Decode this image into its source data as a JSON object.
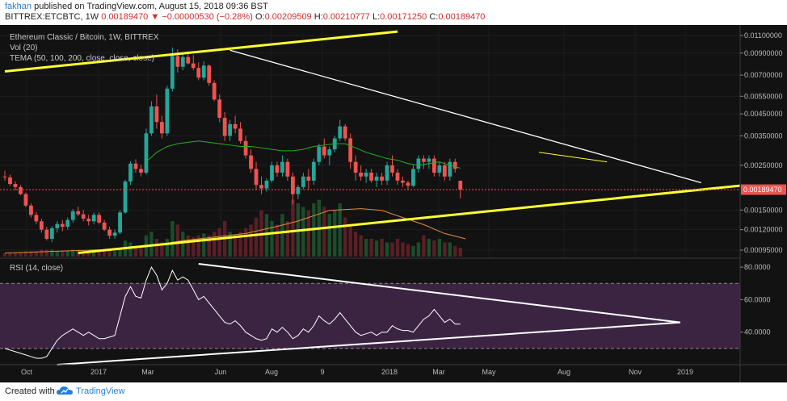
{
  "header": {
    "publisher_user": "fakhan",
    "publisher_text": "published on TradingView.com, August 15, 2018 09:36 BST",
    "symbol": "BITTREX:ETCBTC, 1W",
    "last": "0.00189470",
    "change": "−0.00000530 (−0.28%)",
    "o_label": "O:",
    "o": "0.00209509",
    "h_label": "H:",
    "h": "0.00210777",
    "l_label": "L:",
    "l": "0.00171250",
    "c_label": "C:",
    "c": "0.00189470"
  },
  "legend": {
    "title": "Ethereum Classic / Bitcoin, 1W, BITTREX",
    "vol": "Vol (20)",
    "tema": "TEMA (50, 100, 200, close, close, close)"
  },
  "footer": {
    "created": "Created with",
    "brand": "TradingView"
  },
  "colors": {
    "up": "#26a69a",
    "down": "#ef5350",
    "yellow": "#ffff33",
    "trend": "#ffffff",
    "tema": "#22b322",
    "vol_ma": "#e58a3a",
    "rsi": "#ffffff",
    "rsi_band": "#3b2442",
    "background": "#121212",
    "price_label": "#ef5350"
  },
  "chart_data": {
    "type": "candlestick",
    "price_axis": {
      "scale": "log",
      "ticks": [
        "0.01100000",
        "0.00900000",
        "0.00700000",
        "0.00550000",
        "0.00450000",
        "0.00350000",
        "0.00250000",
        "0.00150000",
        "0.00120000",
        "0.00095000"
      ],
      "last_price_label": "0.00189470"
    },
    "rsi_axis": {
      "ticks": [
        "80.0000",
        "60.0000",
        "40.0000"
      ],
      "upper_band": 70,
      "lower_band": 30,
      "range": [
        20,
        85
      ]
    },
    "x_ticks": [
      "Oct",
      "2017",
      "Mar",
      "Jun",
      "Aug",
      "9",
      "2018",
      "Mar",
      "May",
      "Aug",
      "Nov",
      "2019"
    ],
    "rsi_label": "RSI (14, close)",
    "candles": [
      [
        0.0022,
        0.00235,
        0.0021,
        0.00218
      ],
      [
        0.00218,
        0.00225,
        0.00198,
        0.00202
      ],
      [
        0.00202,
        0.00208,
        0.00188,
        0.00195
      ],
      [
        0.00195,
        0.002,
        0.00178,
        0.0018
      ],
      [
        0.0018,
        0.00183,
        0.00155,
        0.00158
      ],
      [
        0.00158,
        0.00162,
        0.00138,
        0.00142
      ],
      [
        0.00142,
        0.00147,
        0.00128,
        0.00132
      ],
      [
        0.00132,
        0.00136,
        0.00116,
        0.0012
      ],
      [
        0.0012,
        0.00124,
        0.00106,
        0.00108
      ],
      [
        0.00108,
        0.00125,
        0.00104,
        0.00122
      ],
      [
        0.00122,
        0.00132,
        0.00116,
        0.00128
      ],
      [
        0.00128,
        0.00134,
        0.00118,
        0.00124
      ],
      [
        0.00124,
        0.00138,
        0.0012,
        0.00134
      ],
      [
        0.00134,
        0.00152,
        0.0013,
        0.00148
      ],
      [
        0.00148,
        0.00156,
        0.0014,
        0.00143
      ],
      [
        0.00143,
        0.0015,
        0.00132,
        0.00136
      ],
      [
        0.00136,
        0.00142,
        0.00126,
        0.00132
      ],
      [
        0.00132,
        0.00146,
        0.00128,
        0.00142
      ],
      [
        0.00142,
        0.00146,
        0.00128,
        0.0013
      ],
      [
        0.0013,
        0.00134,
        0.00118,
        0.0012
      ],
      [
        0.0012,
        0.00124,
        0.00108,
        0.00112
      ],
      [
        0.00112,
        0.0012,
        0.00108,
        0.00116
      ],
      [
        0.00116,
        0.0015,
        0.00114,
        0.00146
      ],
      [
        0.00146,
        0.00212,
        0.00144,
        0.00208
      ],
      [
        0.00208,
        0.00262,
        0.002,
        0.00255
      ],
      [
        0.00255,
        0.00268,
        0.0023,
        0.0024
      ],
      [
        0.0024,
        0.00252,
        0.0022,
        0.0023
      ],
      [
        0.0023,
        0.0038,
        0.00225,
        0.0036
      ],
      [
        0.0036,
        0.0052,
        0.0035,
        0.0049
      ],
      [
        0.0049,
        0.0056,
        0.0038,
        0.0041
      ],
      [
        0.0041,
        0.0044,
        0.0034,
        0.0036
      ],
      [
        0.0036,
        0.0062,
        0.0035,
        0.006
      ],
      [
        0.006,
        0.0096,
        0.0058,
        0.0087
      ],
      [
        0.0087,
        0.0094,
        0.0072,
        0.0077
      ],
      [
        0.0077,
        0.0091,
        0.0074,
        0.0086
      ],
      [
        0.0086,
        0.0092,
        0.0079,
        0.008
      ],
      [
        0.008,
        0.0088,
        0.0074,
        0.0076
      ],
      [
        0.0076,
        0.0081,
        0.0066,
        0.0068
      ],
      [
        0.0068,
        0.0082,
        0.0066,
        0.0078
      ],
      [
        0.0078,
        0.0079,
        0.0062,
        0.0064
      ],
      [
        0.0064,
        0.0066,
        0.0052,
        0.0053
      ],
      [
        0.0053,
        0.0056,
        0.0041,
        0.0043
      ],
      [
        0.0043,
        0.0046,
        0.0033,
        0.0035
      ],
      [
        0.0035,
        0.0042,
        0.0033,
        0.004
      ],
      [
        0.004,
        0.0044,
        0.0036,
        0.0038
      ],
      [
        0.0038,
        0.0041,
        0.0032,
        0.0033
      ],
      [
        0.0033,
        0.0035,
        0.0027,
        0.0028
      ],
      [
        0.0028,
        0.003,
        0.0023,
        0.0024
      ],
      [
        0.0024,
        0.0026,
        0.0019,
        0.002
      ],
      [
        0.002,
        0.0022,
        0.0018,
        0.00192
      ],
      [
        0.00192,
        0.00215,
        0.00185,
        0.0021
      ],
      [
        0.0021,
        0.0026,
        0.00205,
        0.0025
      ],
      [
        0.0025,
        0.0026,
        0.0022,
        0.0023
      ],
      [
        0.0023,
        0.0028,
        0.0022,
        0.0026
      ],
      [
        0.0026,
        0.0027,
        0.0021,
        0.0022
      ],
      [
        0.0022,
        0.0023,
        0.0016,
        0.0018
      ],
      [
        0.0018,
        0.002,
        0.0017,
        0.00195
      ],
      [
        0.00195,
        0.0023,
        0.0019,
        0.0022
      ],
      [
        0.0022,
        0.0024,
        0.0019,
        0.0021
      ],
      [
        0.0021,
        0.0027,
        0.002,
        0.0026
      ],
      [
        0.0026,
        0.0032,
        0.0025,
        0.0031
      ],
      [
        0.0031,
        0.0034,
        0.0027,
        0.0028
      ],
      [
        0.0028,
        0.0031,
        0.0025,
        0.003
      ],
      [
        0.003,
        0.0035,
        0.0029,
        0.0034
      ],
      [
        0.0034,
        0.0042,
        0.0033,
        0.0039
      ],
      [
        0.0039,
        0.004,
        0.0033,
        0.0034
      ],
      [
        0.0034,
        0.0036,
        0.0024,
        0.0026
      ],
      [
        0.0026,
        0.0028,
        0.0021,
        0.0023
      ],
      [
        0.0023,
        0.0025,
        0.0021,
        0.0022
      ],
      [
        0.0022,
        0.0024,
        0.00205,
        0.0023
      ],
      [
        0.0023,
        0.0024,
        0.00205,
        0.0021
      ],
      [
        0.0021,
        0.0023,
        0.00195,
        0.0022
      ],
      [
        0.0022,
        0.0023,
        0.002,
        0.0021
      ],
      [
        0.0021,
        0.0026,
        0.002,
        0.0025
      ],
      [
        0.0025,
        0.0028,
        0.0022,
        0.0023
      ],
      [
        0.0023,
        0.0024,
        0.002,
        0.0021
      ],
      [
        0.0021,
        0.0022,
        0.00195,
        0.00205
      ],
      [
        0.00205,
        0.0021,
        0.0019,
        0.00198
      ],
      [
        0.00198,
        0.0025,
        0.00195,
        0.0024
      ],
      [
        0.0024,
        0.0028,
        0.0023,
        0.0027
      ],
      [
        0.0027,
        0.0028,
        0.0024,
        0.0026
      ],
      [
        0.0026,
        0.0028,
        0.0024,
        0.0027
      ],
      [
        0.0027,
        0.0028,
        0.0022,
        0.0023
      ],
      [
        0.0023,
        0.0026,
        0.0022,
        0.0025
      ],
      [
        0.0025,
        0.0026,
        0.0021,
        0.0022
      ],
      [
        0.0022,
        0.0027,
        0.0021,
        0.0026
      ],
      [
        0.0026,
        0.0027,
        0.0023,
        0.0024
      ],
      [
        0.00209509,
        0.00210777,
        0.0017125,
        0.0018947
      ]
    ],
    "tema": [
      [
        27,
        0.0026
      ],
      [
        29,
        0.0029
      ],
      [
        31,
        0.0031
      ],
      [
        33,
        0.0032
      ],
      [
        35,
        0.00325
      ],
      [
        37,
        0.0033
      ],
      [
        39,
        0.00325
      ],
      [
        41,
        0.0032
      ],
      [
        43,
        0.00315
      ],
      [
        45,
        0.0031
      ],
      [
        47,
        0.0031
      ],
      [
        49,
        0.00305
      ],
      [
        51,
        0.003
      ],
      [
        53,
        0.00295
      ],
      [
        55,
        0.00295
      ],
      [
        57,
        0.003
      ],
      [
        59,
        0.0031
      ],
      [
        61,
        0.00315
      ],
      [
        63,
        0.0032
      ],
      [
        65,
        0.0032
      ],
      [
        67,
        0.00305
      ],
      [
        69,
        0.0029
      ],
      [
        71,
        0.0028
      ],
      [
        73,
        0.0027
      ],
      [
        75,
        0.00265
      ],
      [
        77,
        0.00255
      ],
      [
        79,
        0.0025
      ],
      [
        81,
        0.00255
      ],
      [
        83,
        0.0026
      ],
      [
        85,
        0.0025
      ],
      [
        87,
        0.00242
      ]
    ],
    "volume": [
      2,
      2,
      2,
      2,
      3,
      3,
      3,
      4,
      4,
      4,
      3,
      3,
      3,
      4,
      4,
      3,
      3,
      3,
      3,
      4,
      4,
      3,
      5,
      9,
      8,
      6,
      6,
      12,
      14,
      10,
      8,
      10,
      20,
      18,
      14,
      12,
      11,
      12,
      13,
      12,
      14,
      16,
      20,
      14,
      12,
      14,
      16,
      18,
      22,
      26,
      24,
      20,
      18,
      24,
      20,
      32,
      30,
      28,
      26,
      30,
      32,
      28,
      24,
      26,
      30,
      22,
      18,
      14,
      12,
      10,
      10,
      9,
      10,
      8,
      8,
      10,
      8,
      7,
      6,
      8,
      12,
      10,
      9,
      10,
      8,
      8,
      6,
      5
    ],
    "volume_ma": [
      [
        0,
        2
      ],
      [
        10,
        3
      ],
      [
        20,
        4
      ],
      [
        28,
        6
      ],
      [
        34,
        9
      ],
      [
        40,
        11
      ],
      [
        46,
        13
      ],
      [
        52,
        17
      ],
      [
        56,
        20
      ],
      [
        62,
        26
      ],
      [
        68,
        27
      ],
      [
        72,
        26
      ],
      [
        76,
        22
      ],
      [
        80,
        18
      ],
      [
        84,
        13
      ],
      [
        88,
        10
      ]
    ],
    "rsi": [
      30,
      29,
      28,
      27,
      26,
      25,
      24,
      24,
      25,
      30,
      35,
      38,
      40,
      42,
      40,
      38,
      40,
      38,
      36,
      36,
      37,
      38,
      50,
      62,
      68,
      62,
      61,
      72,
      80,
      75,
      66,
      70,
      78,
      72,
      74,
      72,
      66,
      60,
      62,
      58,
      54,
      50,
      46,
      45,
      47,
      44,
      40,
      38,
      36,
      35,
      36,
      42,
      40,
      43,
      40,
      36,
      38,
      42,
      40,
      44,
      50,
      47,
      45,
      48,
      52,
      48,
      44,
      40,
      38,
      39,
      40,
      38,
      40,
      40,
      44,
      42,
      41,
      41,
      40,
      44,
      48,
      50,
      54,
      50,
      46,
      48,
      45,
      45
    ],
    "trendlines_price": {
      "resistance_upper": [
        [
          0,
          0.0073
        ],
        [
          75,
          0.0115
        ]
      ],
      "support_lower": [
        [
          14,
          0.00092
        ],
        [
          150,
          0.0021
        ]
      ],
      "descending": [
        [
          43,
          0.0093
        ],
        [
          133,
          0.00205
        ]
      ],
      "short_resistance": [
        [
          102,
          0.0029
        ],
        [
          115,
          0.0026
        ]
      ]
    },
    "trendlines_rsi": {
      "descending": [
        [
          37,
          82
        ],
        [
          129,
          46
        ]
      ],
      "ascending": [
        [
          10,
          20
        ],
        [
          129,
          46
        ]
      ]
    }
  }
}
